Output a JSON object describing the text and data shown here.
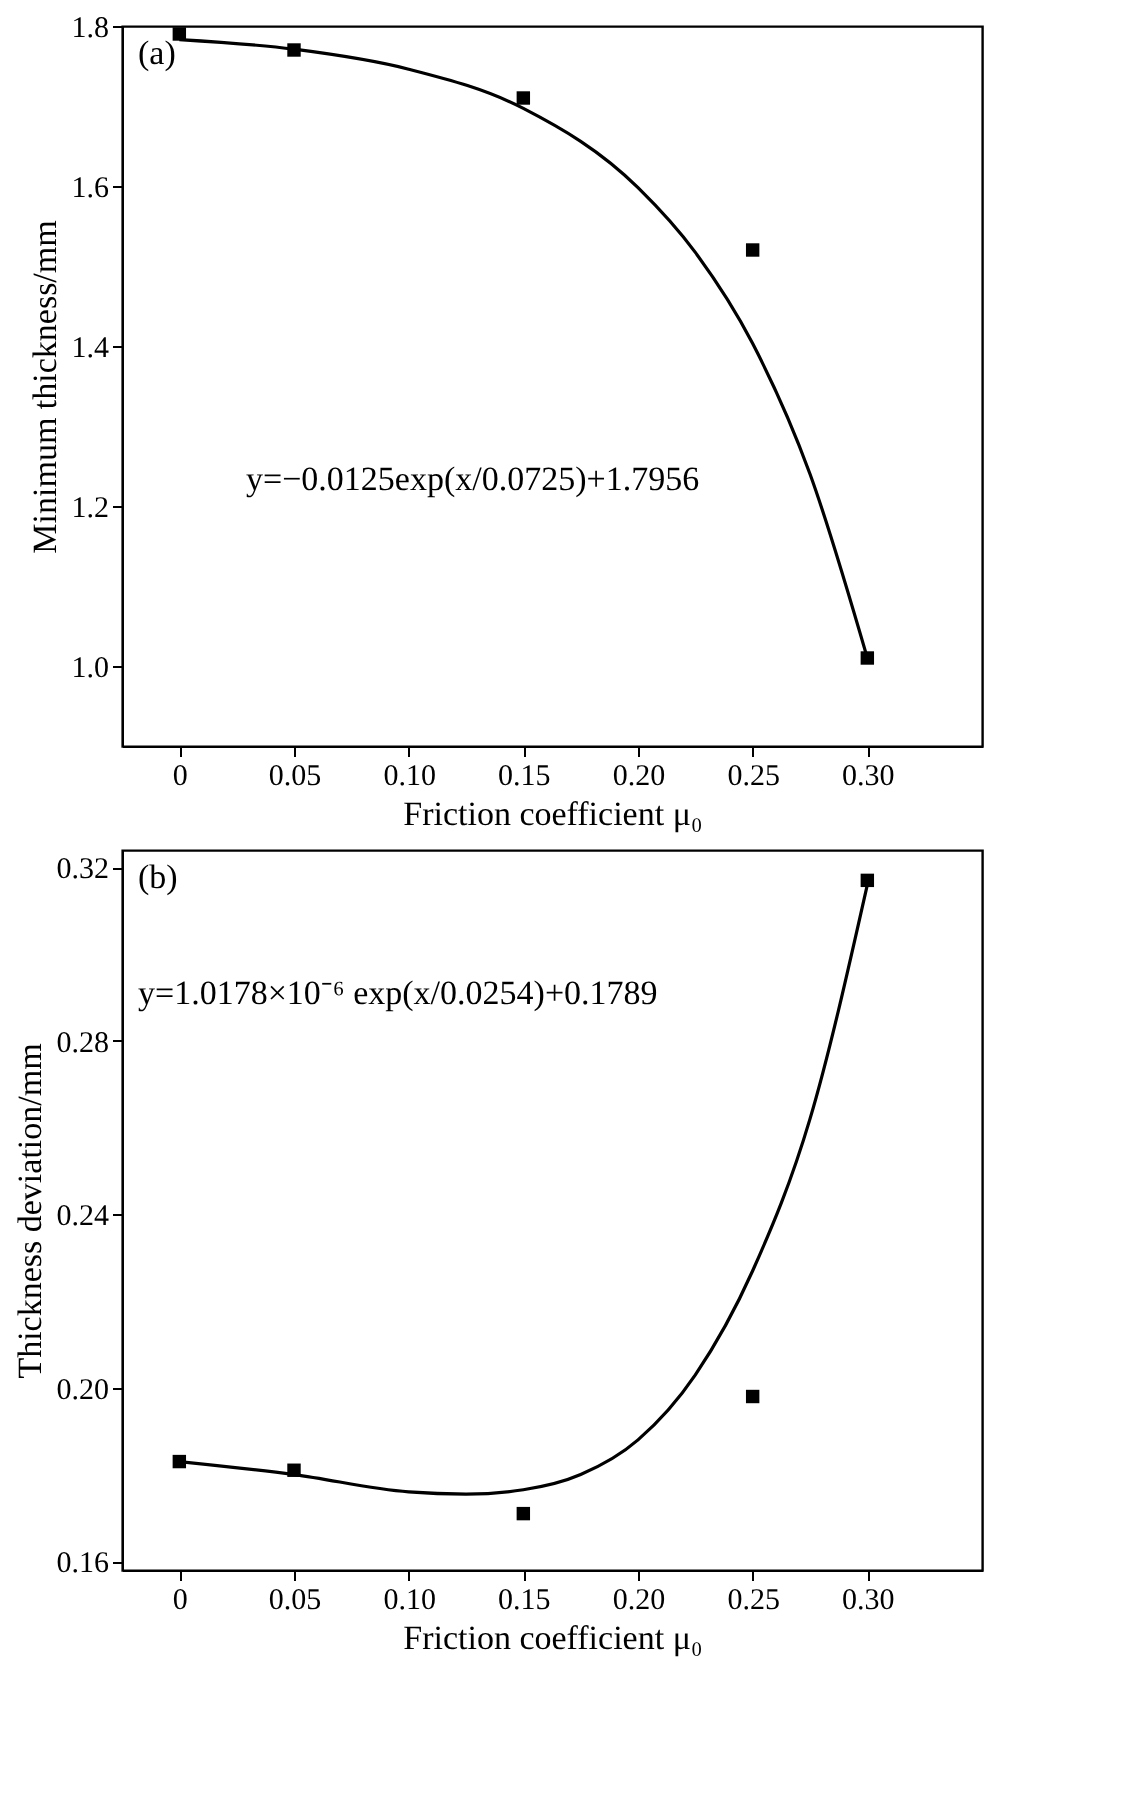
{
  "chart_data": [
    {
      "type": "scatter",
      "xlabel": "Friction coefficient μ₀",
      "ylabel": "Minimum thickness/mm",
      "annotations": [
        "(a)",
        "y=−0.0125exp(x/0.0725)+1.7956"
      ],
      "xlim": [
        -0.025,
        0.35
      ],
      "xticks": [
        0,
        0.05,
        {
          "value": 0.1,
          "label": "0.10"
        },
        0.15,
        {
          "value": 0.2,
          "label": "0.20"
        },
        0.25,
        {
          "value": 0.3,
          "label": "0.30"
        }
      ],
      "ylim": [
        0.9,
        1.8
      ],
      "yticks": [
        {
          "value": 1.0,
          "label": "1.0"
        },
        1.2,
        1.4,
        1.6,
        1.8
      ],
      "grid": false,
      "legend": false,
      "series": [
        {
          "marker": "square",
          "color": "#000000",
          "x": [
            0,
            0.05,
            0.15,
            0.25,
            0.3
          ],
          "values": [
            1.79,
            1.77,
            1.71,
            1.52,
            1.01
          ]
        },
        {
          "type": "line",
          "marker": "none",
          "line_style": "solid",
          "color": "#000000",
          "x": [
            0,
            0.05,
            0.1,
            0.15,
            0.2,
            0.225,
            0.25,
            0.275,
            0.3
          ],
          "values": [
            1.783,
            1.771,
            1.746,
            1.697,
            1.598,
            1.517,
            1.403,
            1.24,
            1.01
          ]
        }
      ]
    },
    {
      "type": "scatter",
      "xlabel": "Friction coefficient μ₀",
      "ylabel": "Thickness deviation/mm",
      "annotations": [
        "(b)",
        "y=1.0178×10⁻⁶ exp(x/0.0254)+0.1789"
      ],
      "xlim": [
        -0.025,
        0.35
      ],
      "xticks": [
        0,
        0.05,
        {
          "value": 0.1,
          "label": "0.10"
        },
        0.15,
        {
          "value": 0.2,
          "label": "0.20"
        },
        0.25,
        {
          "value": 0.3,
          "label": "0.30"
        }
      ],
      "ylim": [
        0.158,
        0.324
      ],
      "yticks": [
        0.16,
        {
          "value": 0.2,
          "label": "0.20"
        },
        0.24,
        0.28,
        0.32
      ],
      "grid": false,
      "legend": false,
      "series": [
        {
          "marker": "square",
          "color": "#000000",
          "x": [
            0,
            0.05,
            0.15,
            0.25,
            0.3
          ],
          "values": [
            0.183,
            0.181,
            0.171,
            0.198,
            0.317
          ]
        },
        {
          "type": "line",
          "marker": "none",
          "line_style": "solid",
          "color": "#000000",
          "x": [
            0,
            0.05,
            0.1,
            0.125,
            0.15,
            0.175,
            0.2,
            0.225,
            0.25,
            0.275,
            0.3
          ],
          "values": [
            0.183,
            0.18,
            0.176,
            0.1755,
            0.1765,
            0.18,
            0.188,
            0.203,
            0.227,
            0.262,
            0.316
          ]
        }
      ]
    }
  ]
}
